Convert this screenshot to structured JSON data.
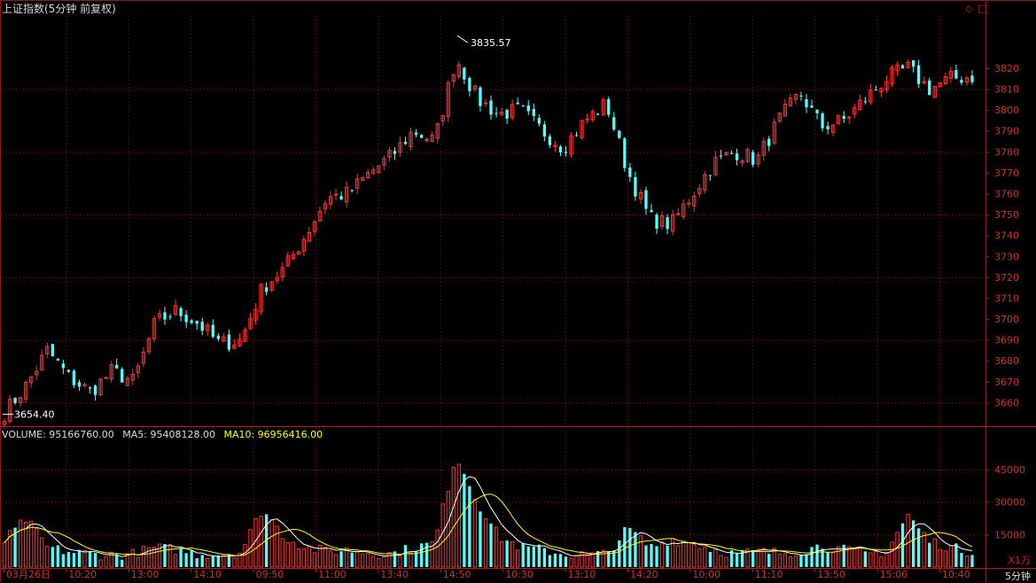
{
  "header": {
    "title": "上证指数(5分钟 前复权)",
    "control_diamond": "◇",
    "control_box": "□"
  },
  "volume_header": {
    "volume": "VOLUME: 95166760.00",
    "ma5": "MA5: 95408128.00",
    "ma10": "MA10: 96956416.00"
  },
  "footer": {
    "unit": "X1万",
    "period": "5分钟"
  },
  "colors": {
    "up": "#ff3232",
    "down": "#54ffff",
    "grid": "#8b1a1a",
    "ma5": "#ffffff",
    "ma10": "#ffff00",
    "axis_text": "#d03030"
  },
  "chart_data": [
    {
      "type": "candlestick",
      "title": "上证指数(5分钟 前复权)",
      "y_axis": {
        "ticks": [
          3660,
          3670,
          3680,
          3690,
          3700,
          3710,
          3720,
          3730,
          3740,
          3750,
          3760,
          3770,
          3780,
          3790,
          3800,
          3810,
          3820
        ],
        "range": [
          3650,
          3845
        ]
      },
      "x_axis": {
        "ticks": [
          "03月26日",
          "10:20",
          "13:00",
          "14:10",
          "09:50",
          "11:00",
          "13:40",
          "14:50",
          "10:30",
          "13:10",
          "14:20",
          "10:00",
          "11:10",
          "13:50",
          "15:00",
          "10:40"
        ]
      },
      "annotations": [
        {
          "text": "3835.57",
          "value": 3835.57
        },
        {
          "text": "3654.40",
          "value": 3654.4
        }
      ],
      "key_closes": [
        3655,
        3668,
        3685,
        3672,
        3665,
        3675,
        3670,
        3698,
        3704,
        3698,
        3688,
        3690,
        3715,
        3724,
        3740,
        3758,
        3760,
        3770,
        3778,
        3790,
        3785,
        3825,
        3805,
        3798,
        3800,
        3790,
        3782,
        3795,
        3803,
        3770,
        3748,
        3745,
        3760,
        3775,
        3780,
        3776,
        3795,
        3808,
        3792,
        3795,
        3805,
        3815,
        3820,
        3810,
        3815,
        3816
      ]
    },
    {
      "type": "bar",
      "title": "VOLUME",
      "y_axis": {
        "ticks": [
          15000,
          30000,
          45000
        ],
        "range": [
          0,
          58000
        ]
      },
      "series": [
        {
          "name": "VOLUME"
        },
        {
          "name": "MA5"
        },
        {
          "name": "MA10"
        }
      ],
      "key_values": [
        12000,
        22000,
        9000,
        7000,
        6000,
        5500,
        6000,
        9000,
        8000,
        6000,
        6000,
        7000,
        27000,
        14000,
        9000,
        7000,
        8000,
        6500,
        6000,
        9000,
        11000,
        52000,
        30000,
        14000,
        9000,
        8000,
        6000,
        5500,
        6000,
        18000,
        9000,
        13000,
        11000,
        8000,
        6000,
        7000,
        6500,
        7500,
        10000,
        8000,
        6000,
        7000,
        24000,
        12000,
        9000,
        7000
      ]
    }
  ]
}
